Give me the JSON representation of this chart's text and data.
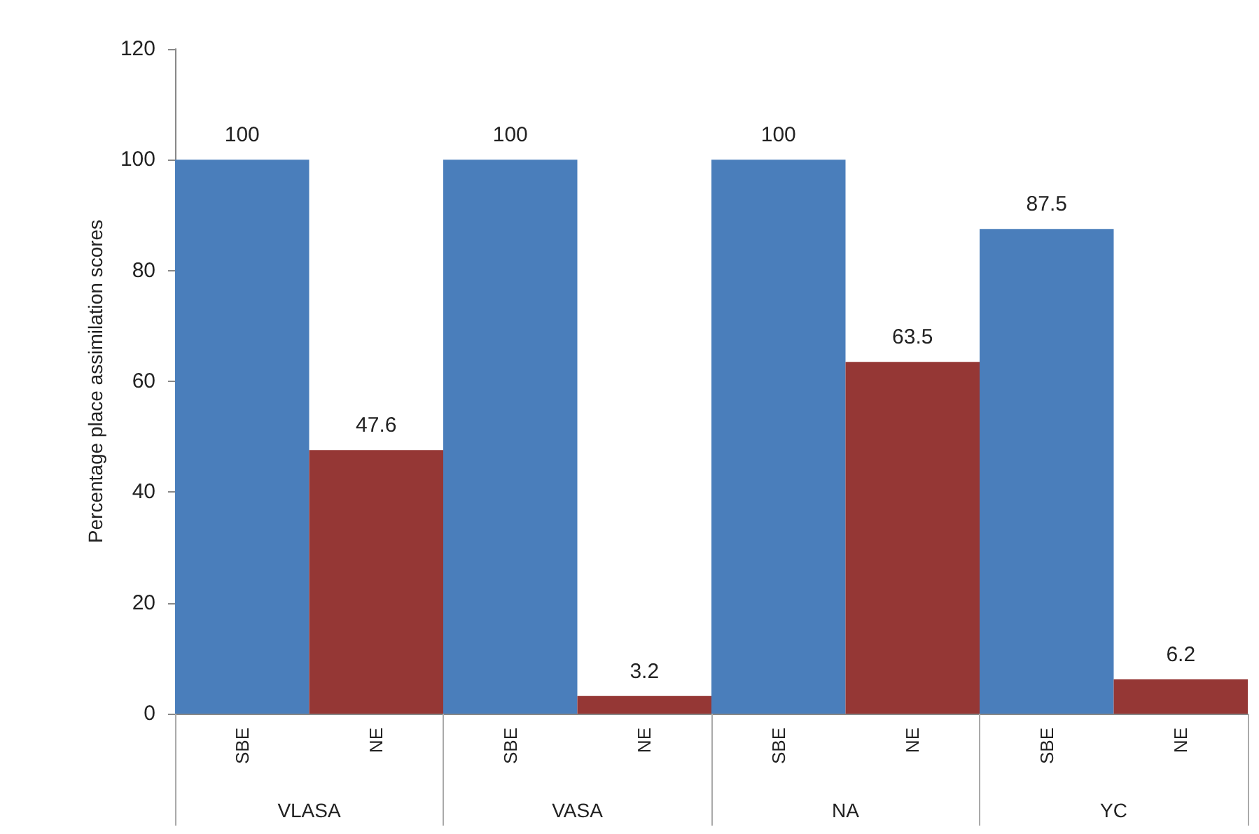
{
  "chart_data": {
    "type": "bar",
    "ylabel": "Percentage place assimilation scores",
    "categories": [
      "VLASA",
      "VASA",
      "NA",
      "YC"
    ],
    "series": [
      {
        "name": "SBE",
        "color": "#4a7ebb",
        "values": [
          100,
          100,
          100,
          87.5
        ]
      },
      {
        "name": "NE",
        "color": "#953735",
        "values": [
          47.6,
          3.2,
          63.5,
          6.2
        ]
      }
    ],
    "ylim": [
      0,
      120
    ],
    "yticks": [
      0,
      20,
      40,
      60,
      80,
      100,
      120
    ],
    "data_labels": true,
    "grid": false,
    "legend": false
  }
}
